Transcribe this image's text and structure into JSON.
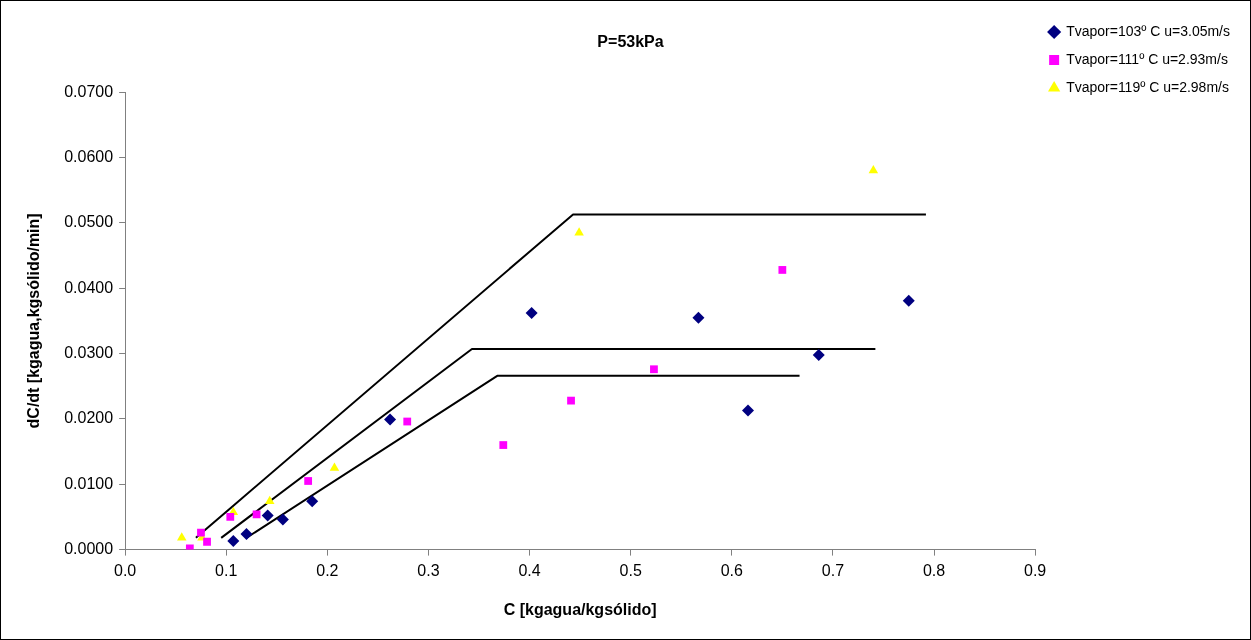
{
  "chart_data": {
    "type": "scatter",
    "title": "P=53kPa",
    "xlabel": "C [kgagua/kgsólido]",
    "ylabel": "dC/dt [kgagua,kgsólido/min]",
    "xlim": [
      0,
      0.9
    ],
    "xticks": [
      {
        "value": 0,
        "label": "0.0"
      },
      0.1,
      0.2,
      0.3,
      0.4,
      0.5,
      0.6,
      0.7,
      0.8,
      0.9
    ],
    "ylim": [
      0,
      0.07
    ],
    "yticks": [
      {
        "value": 0,
        "label": "0.0000"
      },
      {
        "value": 0.01,
        "label": "0.0100"
      },
      {
        "value": 0.02,
        "label": "0.0200"
      },
      {
        "value": 0.03,
        "label": "0.0300"
      },
      {
        "value": 0.04,
        "label": "0.0400"
      },
      {
        "value": 0.05,
        "label": "0.0500"
      },
      {
        "value": 0.06,
        "label": "0.0600"
      },
      {
        "value": 0.07,
        "label": "0.0700"
      }
    ],
    "grid": false,
    "legend": "top right",
    "series": [
      {
        "name": "Tvapor=103º C u=3.05m/s",
        "color": "#000080",
        "marker": "diamond",
        "x": [
          0.107,
          0.12,
          0.141,
          0.156,
          0.185,
          0.262,
          0.402,
          0.567,
          0.616,
          0.686,
          0.775
        ],
        "values": [
          0.0013,
          0.0024,
          0.0052,
          0.0046,
          0.0074,
          0.0199,
          0.0362,
          0.0355,
          0.0213,
          0.0298,
          0.0381
        ]
      },
      {
        "name": "Tvapor=111º C u=2.93m/s",
        "color": "#ff00ff",
        "marker": "square",
        "x": [
          0.064,
          0.075,
          0.081,
          0.104,
          0.13,
          0.181,
          0.279,
          0.374,
          0.441,
          0.523,
          0.65
        ],
        "values": [
          0.0002,
          0.0026,
          0.0012,
          0.005,
          0.0054,
          0.0105,
          0.0196,
          0.016,
          0.0228,
          0.0276,
          0.0428
        ]
      },
      {
        "name": "Tvapor=119º C u=2.98m/s",
        "color": "#ffff00",
        "marker": "triangle",
        "x": [
          0.056,
          0.076,
          0.107,
          0.143,
          0.207,
          0.449,
          0.74
        ],
        "values": [
          0.0018,
          0.0018,
          0.0057,
          0.0074,
          0.0125,
          0.0485,
          0.058
        ]
      },
      {
        "type": "line",
        "color": "#000000",
        "marker": "none",
        "x": [
          0.07,
          0.443,
          0.792
        ],
        "values": [
          0.0018,
          0.0513,
          0.0513
        ]
      },
      {
        "type": "line",
        "color": "#000000",
        "marker": "none",
        "x": [
          0.095,
          0.343,
          0.742
        ],
        "values": [
          0.0018,
          0.0307,
          0.0307
        ]
      },
      {
        "type": "line",
        "color": "#000000",
        "marker": "none",
        "x": [
          0.12,
          0.368,
          0.667
        ],
        "values": [
          0.0018,
          0.0266,
          0.0266
        ]
      }
    ]
  }
}
